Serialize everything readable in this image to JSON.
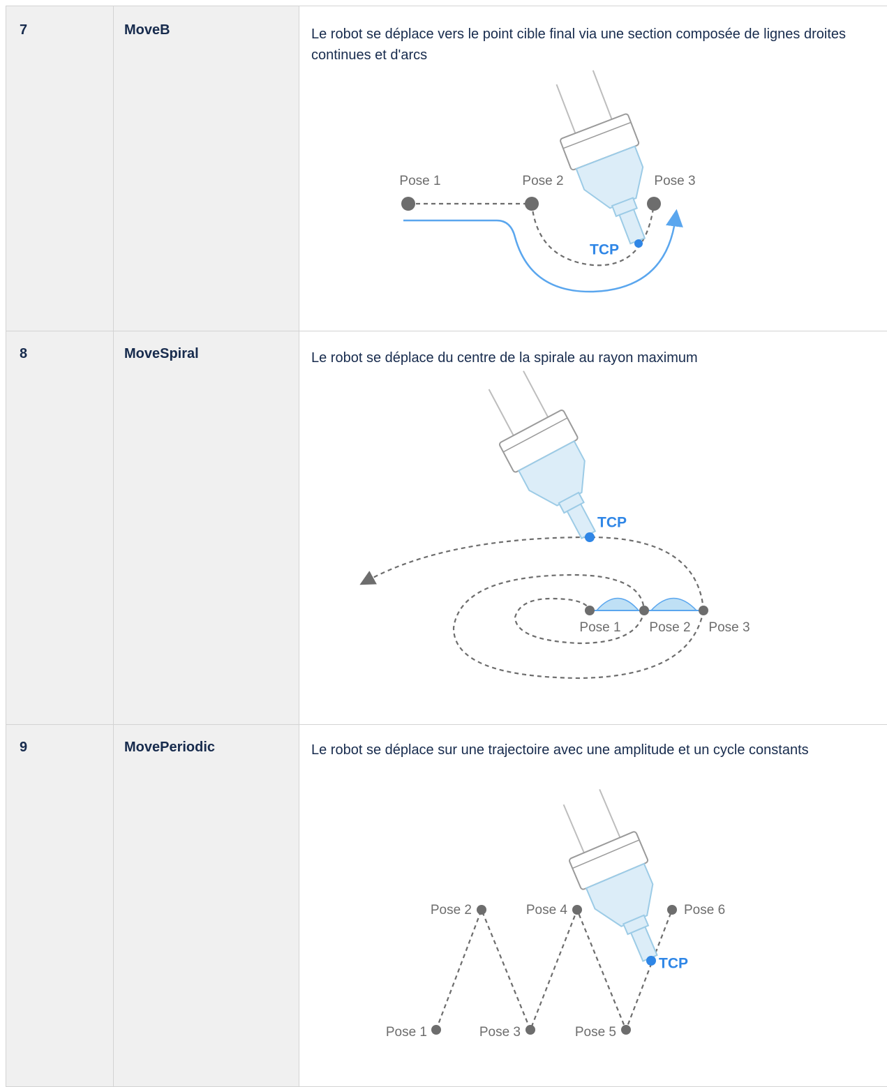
{
  "table": {
    "rows": [
      {
        "number": "7",
        "name": "MoveB",
        "description": "Le robot se déplace vers le point cible final via une section composée de lignes droites continues et d'arcs",
        "diagram_labels": [
          "Pose 1",
          "Pose 2",
          "Pose 3",
          "TCP"
        ]
      },
      {
        "number": "8",
        "name": "MoveSpiral",
        "description": "Le robot se déplace du centre de la spirale au rayon maximum",
        "diagram_labels": [
          "TCP",
          "Pose 1",
          "Pose 2",
          "Pose 3"
        ]
      },
      {
        "number": "9",
        "name": "MovePeriodic",
        "description": "Le robot se déplace sur une trajectoire avec une amplitude et un cycle constants",
        "diagram_labels": [
          "Pose 2",
          "Pose 4",
          "Pose 6",
          "TCP",
          "Pose 1",
          "Pose 3",
          "Pose 5"
        ]
      }
    ]
  }
}
